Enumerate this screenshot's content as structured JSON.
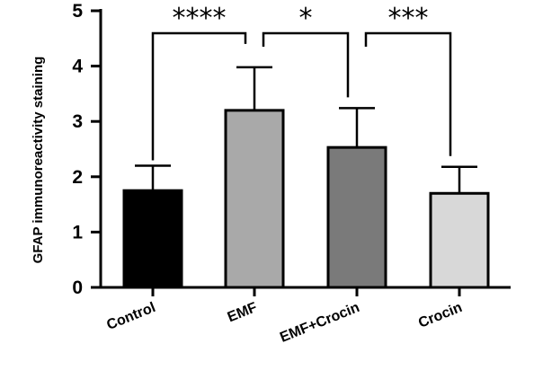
{
  "chart_data": {
    "type": "bar",
    "ylabel": "GFAP immunoreactivity staining",
    "xlabel": "",
    "ylim": [
      0,
      5
    ],
    "yticks": [
      0,
      1,
      2,
      3,
      4,
      5
    ],
    "grid": false,
    "categories": [
      "Control",
      "EMF",
      "EMF+Crocin",
      "Crocin"
    ],
    "values": [
      1.75,
      3.2,
      2.53,
      1.7
    ],
    "errors": [
      0.45,
      0.78,
      0.71,
      0.48
    ],
    "colors": [
      "#000000",
      "#a9a9a9",
      "#7a7a7a",
      "#d8d8d8"
    ],
    "significance": [
      {
        "from": 0,
        "to": 1,
        "label": "****"
      },
      {
        "from": 1,
        "to": 2,
        "label": "*"
      },
      {
        "from": 2,
        "to": 3,
        "label": "***"
      }
    ]
  }
}
